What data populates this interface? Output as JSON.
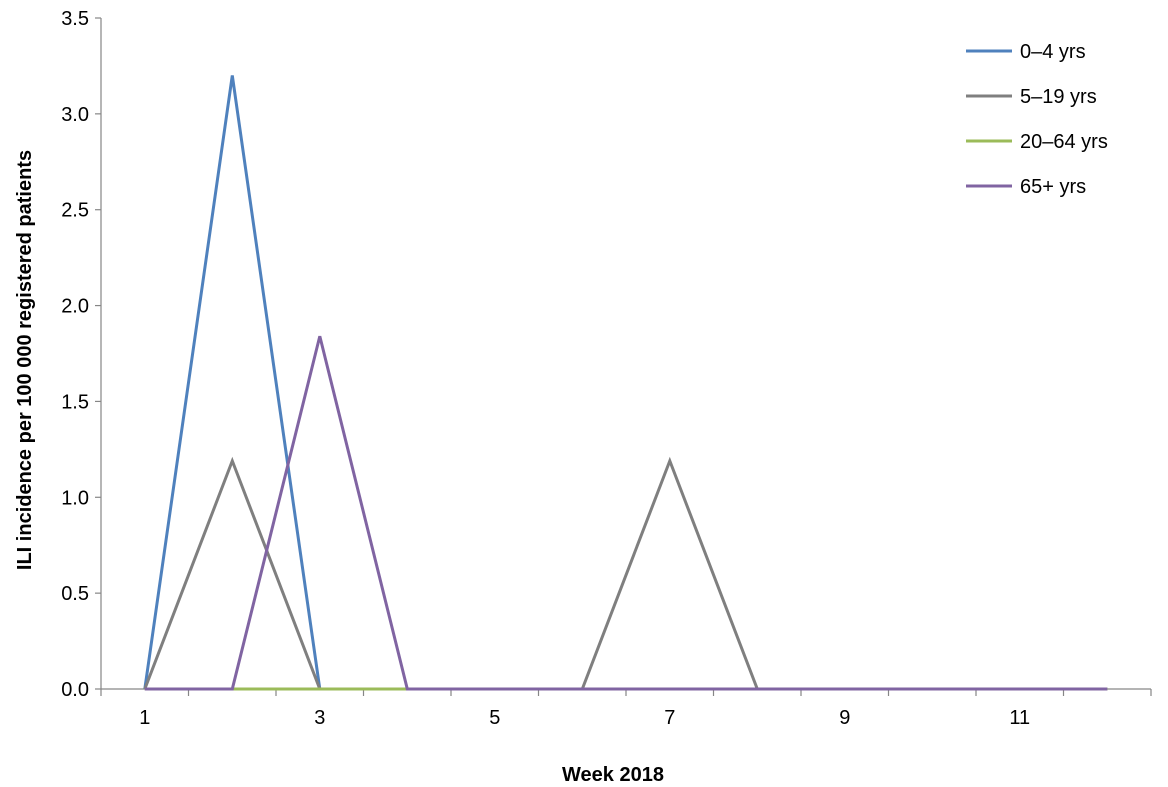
{
  "chart_data": {
    "type": "line",
    "xlabel": "Week 2018",
    "ylabel": "ILI incidence per 100 000 registered patients",
    "x": [
      1,
      2,
      3,
      4,
      5,
      6,
      7,
      8,
      9,
      10,
      11,
      12
    ],
    "x_tick_labels": [
      "1",
      "3",
      "5",
      "7",
      "9",
      "11"
    ],
    "x_tick_values": [
      1,
      3,
      5,
      7,
      9,
      11
    ],
    "y_tick_labels": [
      "0.0",
      "0.5",
      "1.0",
      "1.5",
      "2.0",
      "2.5",
      "3.0",
      "3.5"
    ],
    "ylim": [
      0,
      3.5
    ],
    "xlim": [
      0.5,
      12.5
    ],
    "grid": false,
    "legend_position": "top-right",
    "series": [
      {
        "name": "0–4 yrs",
        "color": "#4F81BD",
        "values": [
          0,
          3.2,
          0,
          0,
          0,
          0,
          0,
          0,
          0,
          0,
          0,
          0
        ]
      },
      {
        "name": "5–19 yrs",
        "color": "#7F7F7F",
        "values": [
          0,
          1.19,
          0,
          0,
          0,
          0,
          1.19,
          0,
          0,
          0,
          0,
          0
        ]
      },
      {
        "name": "20–64 yrs",
        "color": "#9BBB59",
        "values": [
          0,
          0,
          0,
          0,
          0,
          0,
          0,
          0,
          0,
          0,
          0,
          0
        ]
      },
      {
        "name": "65+ yrs",
        "color": "#8064A2",
        "values": [
          0,
          0,
          1.84,
          0,
          0,
          0,
          0,
          0,
          0,
          0,
          0,
          0
        ]
      }
    ]
  }
}
